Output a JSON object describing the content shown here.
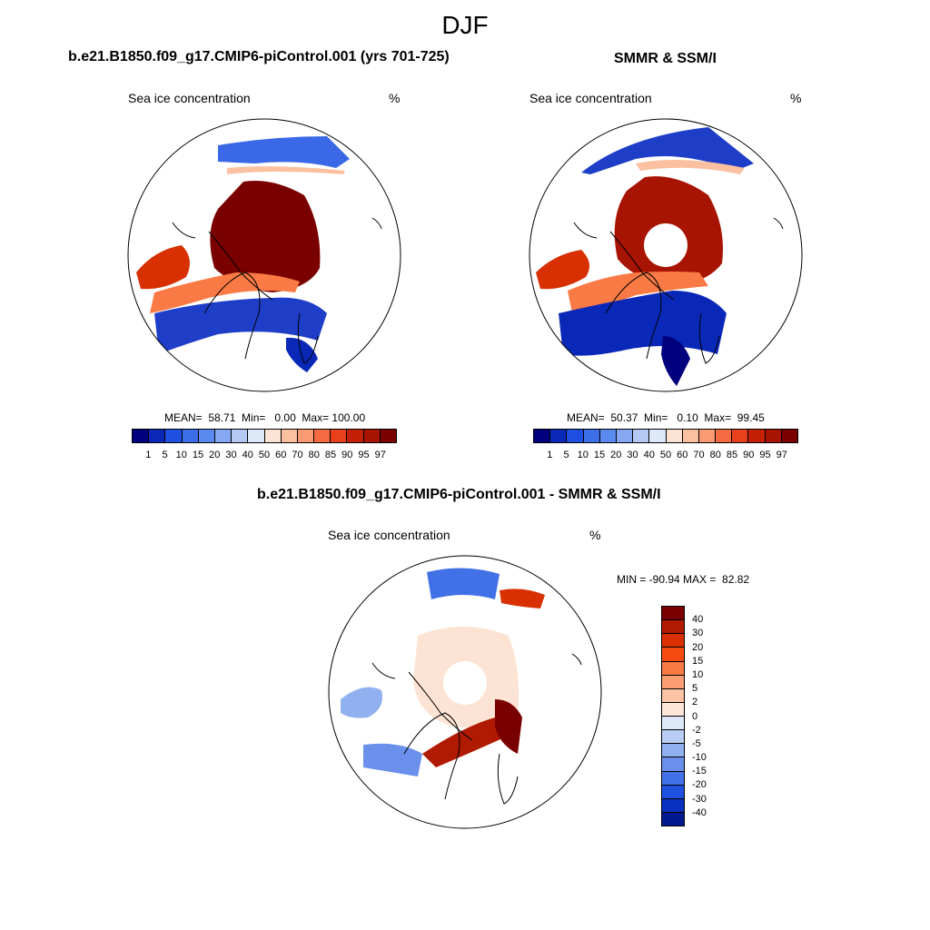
{
  "season": "DJF",
  "panels": {
    "model": {
      "title": "b.e21.B1850.f09_g17.CMIP6-piControl.001 (yrs 701-725)",
      "subtitle_left": "Sea ice concentration",
      "subtitle_right": "%",
      "stats": "MEAN=  58.71  Min=   0.00  Max= 100.00"
    },
    "obs": {
      "title": "SMMR & SSM/I",
      "subtitle_left": "Sea ice concentration",
      "subtitle_right": "%",
      "stats": "MEAN=  50.37  Min=   0.10  Max=  99.45"
    },
    "diff": {
      "title": "b.e21.B1850.f09_g17.CMIP6-piControl.001 - SMMR & SSM/I",
      "subtitle_left": "Sea ice concentration",
      "subtitle_right": "%",
      "stats": "MIN = -90.94 MAX =  82.82"
    }
  },
  "chart_data": [
    {
      "type": "heatmap",
      "title": "b.e21.B1850.f09_g17.CMIP6-piControl.001 (yrs 701-725)",
      "variable": "Sea ice concentration",
      "units": "%",
      "projection": "north polar stereographic",
      "mean": 58.71,
      "min": 0.0,
      "max": 100.0,
      "colorbar_levels": [
        "1",
        "5",
        "10",
        "15",
        "20",
        "30",
        "40",
        "50",
        "60",
        "70",
        "80",
        "85",
        "90",
        "95",
        "97"
      ],
      "colorbar_colors": [
        "#00007f",
        "#0a28b8",
        "#1f4fe0",
        "#3c6ee8",
        "#5a8af0",
        "#86a8f2",
        "#b4c8f4",
        "#dde8f8",
        "#fde3d3",
        "#fbc0a0",
        "#f99a72",
        "#f56a40",
        "#e8401c",
        "#c42006",
        "#a81402",
        "#7a0000"
      ]
    },
    {
      "type": "heatmap",
      "title": "SMMR & SSM/I",
      "variable": "Sea ice concentration",
      "units": "%",
      "projection": "north polar stereographic",
      "mean": 50.37,
      "min": 0.1,
      "max": 99.45,
      "colorbar_levels": [
        "1",
        "5",
        "10",
        "15",
        "20",
        "30",
        "40",
        "50",
        "60",
        "70",
        "80",
        "85",
        "90",
        "95",
        "97"
      ],
      "colorbar_colors": [
        "#00007f",
        "#0a28b8",
        "#1f4fe0",
        "#3c6ee8",
        "#5a8af0",
        "#86a8f2",
        "#b4c8f4",
        "#dde8f8",
        "#fde3d3",
        "#fbc0a0",
        "#f99a72",
        "#f56a40",
        "#e8401c",
        "#c42006",
        "#a81402",
        "#7a0000"
      ]
    },
    {
      "type": "heatmap",
      "title": "b.e21.B1850.f09_g17.CMIP6-piControl.001 - SMMR & SSM/I",
      "variable": "Sea ice concentration",
      "units": "%",
      "projection": "north polar stereographic",
      "min": -90.94,
      "max": 82.82,
      "colorbar_levels": [
        "40",
        "30",
        "20",
        "15",
        "10",
        "5",
        "2",
        "0",
        "-2",
        "-5",
        "-10",
        "-15",
        "-20",
        "-30",
        "-40"
      ],
      "colorbar_colors": [
        "#7a0000",
        "#b01a00",
        "#d83000",
        "#f54a10",
        "#f97a45",
        "#fb9e74",
        "#fcc3a4",
        "#fde6d8",
        "#dde8f8",
        "#b9cdf4",
        "#90b0f0",
        "#6a90ec",
        "#4270e6",
        "#2050e0",
        "#0a30c0",
        "#001890"
      ]
    }
  ]
}
